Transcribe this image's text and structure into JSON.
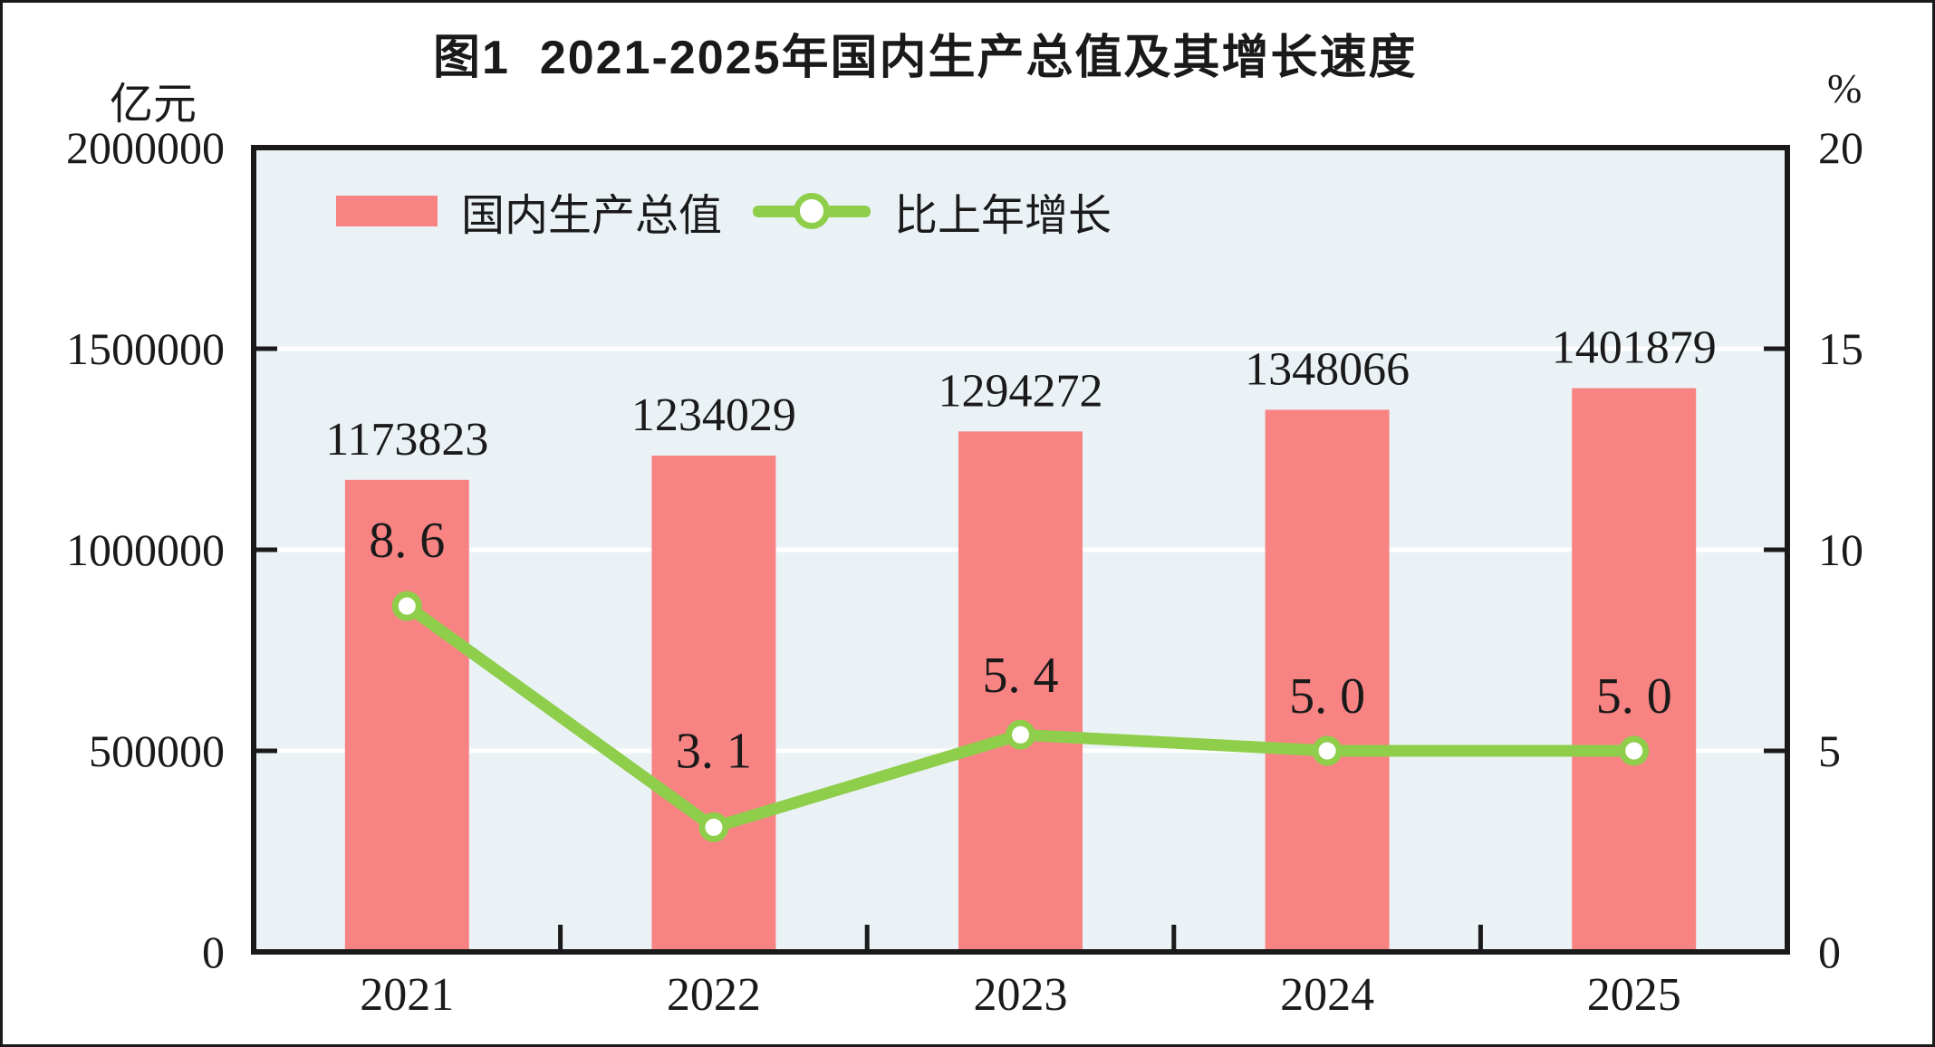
{
  "title": "图1  2021-2025年国内生产总值及其增长速度",
  "chart_data": {
    "type": "combo bar+line",
    "categories": [
      "2021",
      "2022",
      "2023",
      "2024",
      "2025"
    ],
    "series": [
      {
        "name": "国内生产总值",
        "type": "bar",
        "axis": "left",
        "unit": "亿元",
        "color": "#F88383",
        "values": [
          1173823,
          1234029,
          1294272,
          1348066,
          1401879
        ],
        "labels": [
          "1173823",
          "1234029",
          "1294272",
          "1348066",
          "1401879"
        ]
      },
      {
        "name": "比上年增长",
        "type": "line",
        "axis": "right",
        "unit": "%",
        "color": "#8FCE4B",
        "marker": "open-circle",
        "values": [
          8.6,
          3.1,
          5.4,
          5.0,
          5.0
        ],
        "labels": [
          "8. 6",
          "3. 1",
          "5. 4",
          "5. 0",
          "5. 0"
        ]
      }
    ],
    "left_axis": {
      "unit": "亿元",
      "min": 0,
      "max": 2000000,
      "tick_interval": 500000,
      "tick_labels": [
        "0",
        "500000",
        "1000000",
        "1500000",
        "2000000"
      ]
    },
    "right_axis": {
      "unit": "%",
      "min": 0,
      "max": 20,
      "tick_interval": 5,
      "tick_labels": [
        "0",
        "5",
        "10",
        "15",
        "20"
      ]
    },
    "legend": {
      "position": "inside-top-left",
      "items": [
        "国内生产总值",
        "比上年增长"
      ]
    },
    "style": {
      "plot_background": "#EAF2F6",
      "gridline_color": "#FFFFFF",
      "ink_color": "#1A1A1A",
      "grid": "horizontal-on"
    }
  }
}
